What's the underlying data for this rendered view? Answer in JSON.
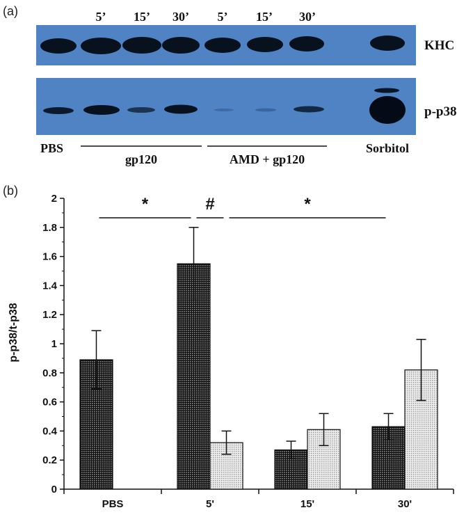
{
  "panel_a": {
    "label": "(a)",
    "time_labels": [
      "5’",
      "15’",
      "30’",
      "5’",
      "15’",
      "30’"
    ],
    "blot_labels": [
      "KHC",
      "p-p38"
    ],
    "lanes": {
      "pbs": "PBS",
      "gp120": "gp120",
      "amd_gp120": "AMD + gp120",
      "sorbitol": "Sorbitol"
    },
    "colors": {
      "film": "#4f83c4",
      "band": "#0a1526"
    }
  },
  "chart_data": {
    "type": "bar",
    "panel_label": "(b)",
    "categories": [
      "PBS",
      "5'",
      "15'",
      "30'"
    ],
    "ylabel": "p-p38/t-p38",
    "ylim": [
      0,
      2
    ],
    "yticks": [
      "0",
      "0.2",
      "0.4",
      "0.6",
      "0.8",
      "1",
      "1.2",
      "1.4",
      "1.6",
      "1.8",
      "2"
    ],
    "series": [
      {
        "values": [
          0.89,
          1.55,
          0.27,
          0.43
        ],
        "errors": [
          0.2,
          0.25,
          0.06,
          0.09
        ],
        "color": "#2b2b2b",
        "pattern": "dark-grid"
      },
      {
        "values": [
          null,
          0.32,
          0.41,
          0.82
        ],
        "errors": [
          null,
          0.08,
          0.11,
          0.21
        ],
        "color": "#d9d9d9",
        "pattern": "light-grid"
      }
    ],
    "annotations": [
      {
        "text": "*",
        "from": 0,
        "to": 1
      },
      {
        "text": "#",
        "from": 1,
        "to": 1.5
      },
      {
        "text": "*",
        "from": 1.5,
        "to": 3
      }
    ],
    "grid": false
  }
}
